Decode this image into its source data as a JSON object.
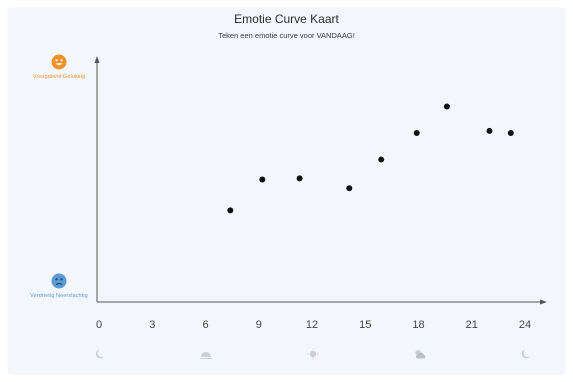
{
  "title": "Emotie Curve Kaart",
  "subtitle": "Teken een emotie curve voor VANDAAG!",
  "emotions": {
    "top": {
      "label": "Vreugdevol  Gelukkig",
      "icon": "happy-face-icon",
      "color": "#f0922a"
    },
    "bottom": {
      "label": "Verdrietig  Neerslachtig",
      "icon": "sad-face-icon",
      "color": "#5b9bd5"
    }
  },
  "time_icons": [
    "moon-icon",
    "sunrise-icon",
    "sun-icon",
    "cloud-sun-icon",
    "moon-icon"
  ],
  "chart_data": {
    "type": "scatter",
    "title": "Emotie Curve Kaart",
    "subtitle": "Teken een emotie curve voor VANDAAG!",
    "xlabel": "",
    "ylabel": "",
    "xlim": [
      0,
      24
    ],
    "ylim": [
      0,
      10
    ],
    "x_ticks": [
      0,
      3,
      6,
      9,
      12,
      15,
      18,
      21,
      24
    ],
    "grid": false,
    "points": [
      {
        "x": 7.4,
        "y": 4.1
      },
      {
        "x": 9.2,
        "y": 5.5
      },
      {
        "x": 11.3,
        "y": 5.55
      },
      {
        "x": 14.1,
        "y": 5.1
      },
      {
        "x": 15.9,
        "y": 6.4
      },
      {
        "x": 17.9,
        "y": 7.6
      },
      {
        "x": 19.6,
        "y": 8.8
      },
      {
        "x": 22.0,
        "y": 7.7
      },
      {
        "x": 23.2,
        "y": 7.6
      }
    ]
  }
}
